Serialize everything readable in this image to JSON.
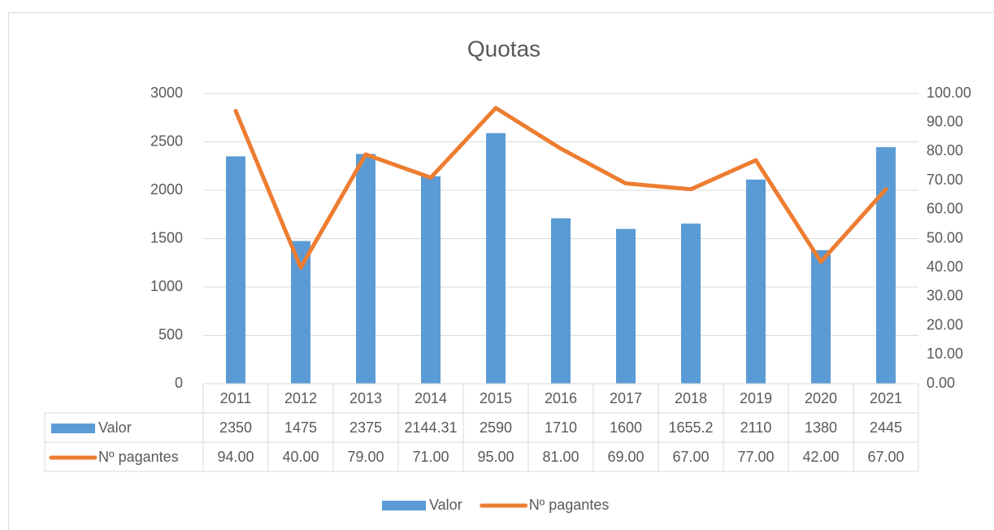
{
  "chart_data": {
    "type": "bar_line",
    "title": "Quotas",
    "categories": [
      "2011",
      "2012",
      "2013",
      "2014",
      "2015",
      "2016",
      "2017",
      "2018",
      "2019",
      "2020",
      "2021"
    ],
    "series": [
      {
        "name": "Valor",
        "type": "bar",
        "color": "#5b9bd5",
        "values": [
          2350,
          1475,
          2375,
          2144.31,
          2590,
          1710,
          1600,
          1655.2,
          2110,
          1380,
          2445
        ]
      },
      {
        "name": "Nº pagantes",
        "type": "line",
        "axis": "y2",
        "color": "#ed7d31",
        "values": [
          94,
          40,
          79,
          71,
          95,
          81,
          69,
          67,
          77,
          42,
          67
        ],
        "value_labels": [
          "94.00",
          "40.00",
          "79.00",
          "71.00",
          "95.00",
          "81.00",
          "69.00",
          "67.00",
          "77.00",
          "42.00",
          "67.00"
        ]
      }
    ],
    "ylim": [
      0,
      3000
    ],
    "yticks": [
      0,
      500,
      1000,
      1500,
      2000,
      2500,
      3000
    ],
    "y2lim": [
      0,
      100
    ],
    "y2ticks": [
      {
        "value": 0,
        "label": "0.00"
      },
      {
        "value": 10,
        "label": "10.00"
      },
      {
        "value": 20,
        "label": "20.00"
      },
      {
        "value": 30,
        "label": "30.00"
      },
      {
        "value": 40,
        "label": "40.00"
      },
      {
        "value": 50,
        "label": "50.00"
      },
      {
        "value": 60,
        "label": "60.00"
      },
      {
        "value": 70,
        "label": "70.00"
      },
      {
        "value": 80,
        "label": "80.00"
      },
      {
        "value": 90,
        "label": "90.00"
      },
      {
        "value": 100,
        "label": "100.00"
      }
    ],
    "grid": true,
    "data_table": true,
    "legend": "bottom"
  }
}
